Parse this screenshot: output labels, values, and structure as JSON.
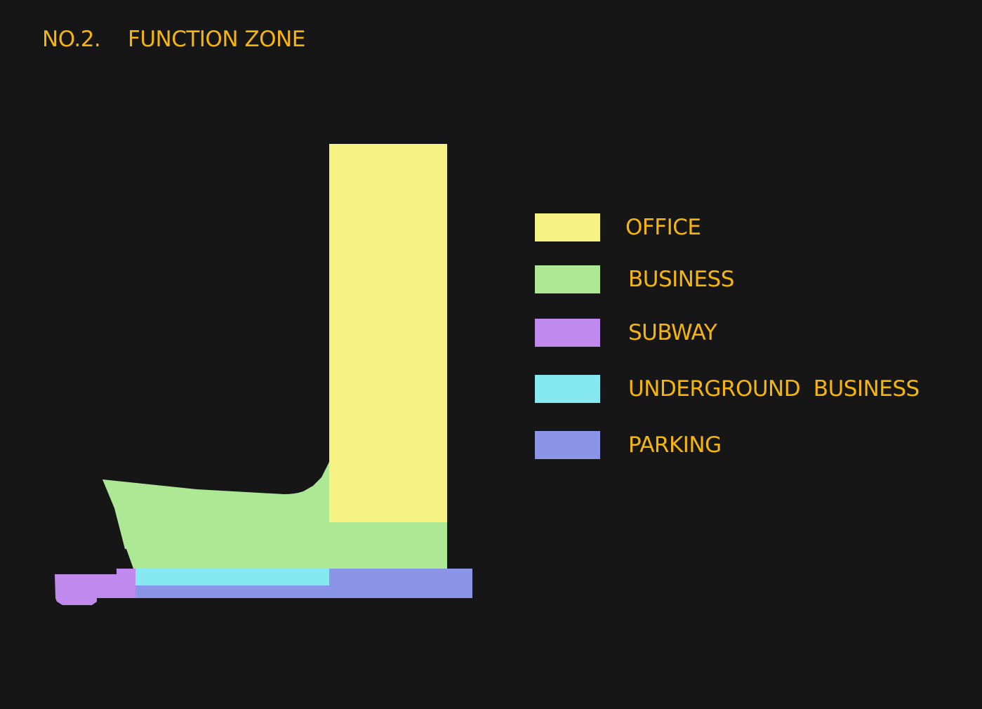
{
  "title": {
    "number": "NO.2.",
    "text": "FUNCTION ZONE"
  },
  "colors": {
    "background": "#161616",
    "text": "#f5b50a",
    "office": "#f7f383",
    "business": "#ade994",
    "subway": "#c089ed",
    "underground_business": "#86e8f0",
    "parking": "#8a95e8"
  },
  "legend": [
    {
      "label": "OFFICE",
      "color": "#f7f383"
    },
    {
      "label": "BUSINESS",
      "color": "#ade994"
    },
    {
      "label": "SUBWAY",
      "color": "#c089ed"
    },
    {
      "label": "UNDERGROUND  BUSINESS",
      "color": "#86e8f0"
    },
    {
      "label": "PARKING",
      "color": "#8a95e8"
    }
  ]
}
